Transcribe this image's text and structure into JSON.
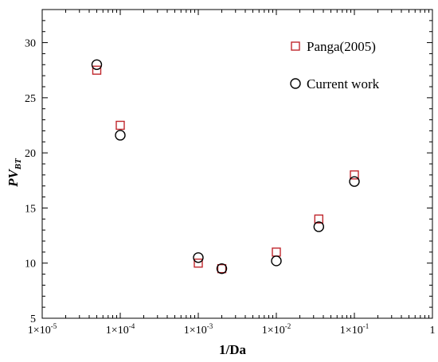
{
  "chart_data": {
    "type": "scatter",
    "title": "",
    "xlabel": "1/Da",
    "ylabel": {
      "main": "PV",
      "sub": "BT"
    },
    "x_scale": "log",
    "xlim": [
      1e-05,
      1
    ],
    "ylim": [
      5,
      33
    ],
    "x_ticks": [
      {
        "value": 1e-05,
        "mant": "1×10",
        "exp": "-5"
      },
      {
        "value": 0.0001,
        "mant": "1×10",
        "exp": "-4"
      },
      {
        "value": 0.001,
        "mant": "1×10",
        "exp": "-3"
      },
      {
        "value": 0.01,
        "mant": "1×10",
        "exp": "-2"
      },
      {
        "value": 0.1,
        "mant": "1×10",
        "exp": "-1"
      },
      {
        "value": 1,
        "mant": "1",
        "exp": ""
      }
    ],
    "y_ticks": [
      5,
      10,
      15,
      20,
      25,
      30
    ],
    "grid": false,
    "legend_position": "top-right",
    "series": [
      {
        "name": "Panga(2005)",
        "marker": "square",
        "color": "#c0272d",
        "points": [
          {
            "x": 5e-05,
            "y": 27.5
          },
          {
            "x": 0.0001,
            "y": 22.5
          },
          {
            "x": 0.001,
            "y": 10.0
          },
          {
            "x": 0.002,
            "y": 9.5
          },
          {
            "x": 0.01,
            "y": 11.0
          },
          {
            "x": 0.035,
            "y": 14.0
          },
          {
            "x": 0.1,
            "y": 18.0
          }
        ]
      },
      {
        "name": "Current work",
        "marker": "circle",
        "color": "#000000",
        "points": [
          {
            "x": 5e-05,
            "y": 28.0
          },
          {
            "x": 0.0001,
            "y": 21.6
          },
          {
            "x": 0.001,
            "y": 10.5
          },
          {
            "x": 0.002,
            "y": 9.5
          },
          {
            "x": 0.01,
            "y": 10.2
          },
          {
            "x": 0.035,
            "y": 13.3
          },
          {
            "x": 0.1,
            "y": 17.4
          }
        ]
      }
    ]
  }
}
